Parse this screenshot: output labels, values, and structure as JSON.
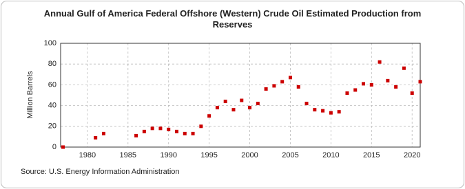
{
  "chart_data": {
    "type": "scatter",
    "title": "Annual Gulf of America Federal Offshore (Western) Crude Oil Estimated Production from Reserves",
    "y_label": "Million Barrels",
    "source": "Source: U.S. Energy Information Administration",
    "color": "#cc0000",
    "x": [
      1977,
      1981,
      1982,
      1986,
      1987,
      1988,
      1989,
      1990,
      1991,
      1992,
      1993,
      1994,
      1995,
      1996,
      1997,
      1998,
      1999,
      2000,
      2001,
      2002,
      2003,
      2004,
      2005,
      2006,
      2007,
      2008,
      2009,
      2010,
      2011,
      2012,
      2013,
      2014,
      2015,
      2016,
      2017,
      2018,
      2019,
      2020,
      2021
    ],
    "values": [
      0,
      9,
      13,
      11,
      15,
      18,
      18,
      17,
      15,
      13,
      13,
      20,
      30,
      38,
      44,
      36,
      45,
      38,
      42,
      56,
      59,
      63,
      67,
      58,
      42,
      36,
      35,
      33,
      34,
      52,
      55,
      61,
      60,
      82,
      64,
      58,
      76,
      52,
      63
    ],
    "xlim": [
      1976.7,
      2021.0
    ],
    "ylim": [
      0,
      100
    ],
    "xticks": [
      1980,
      1985,
      1990,
      1995,
      2000,
      2005,
      2010,
      2015,
      2020
    ],
    "yticks": [
      0,
      20,
      40,
      60,
      80,
      100
    ],
    "grid": true
  }
}
